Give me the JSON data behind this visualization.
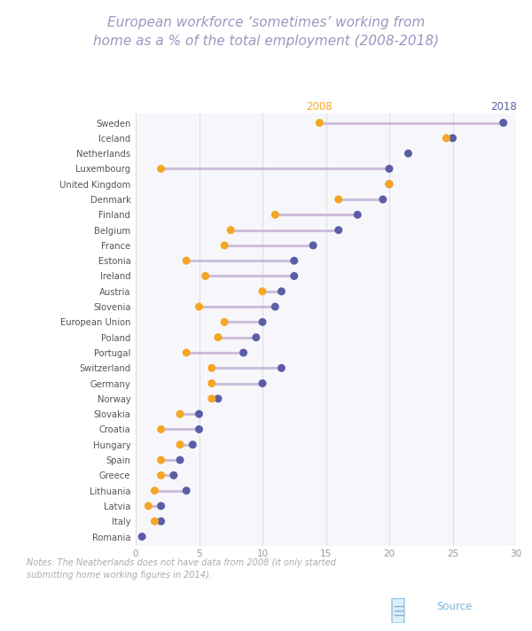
{
  "title_line1": "European workforce ‘sometimes’ working from",
  "title_line2": "home as a % of the total employment (2008-2018)",
  "countries": [
    "Sweden",
    "Iceland",
    "Netherlands",
    "Luxembourg",
    "United Kingdom",
    "Denmark",
    "Finland",
    "Belgium",
    "France",
    "Estonia",
    "Ireland",
    "Austria",
    "Slovenia",
    "European Union",
    "Poland",
    "Portugal",
    "Switzerland",
    "Germany",
    "Norway",
    "Slovakia",
    "Croatia",
    "Hungary",
    "Spain",
    "Greece",
    "Lithuania",
    "Latvia",
    "Italy",
    "Romania"
  ],
  "values_2008": [
    14.5,
    24.5,
    null,
    2.0,
    20.0,
    16.0,
    11.0,
    7.5,
    7.0,
    4.0,
    5.5,
    10.0,
    5.0,
    7.0,
    6.5,
    4.0,
    6.0,
    6.0,
    6.0,
    3.5,
    2.0,
    3.5,
    2.0,
    2.0,
    1.5,
    1.0,
    1.5,
    null
  ],
  "values_2018": [
    29.0,
    25.0,
    21.5,
    20.0,
    20.0,
    19.5,
    17.5,
    16.0,
    14.0,
    12.5,
    12.5,
    11.5,
    11.0,
    10.0,
    9.5,
    8.5,
    11.5,
    10.0,
    6.5,
    5.0,
    5.0,
    4.5,
    3.5,
    3.0,
    4.0,
    2.0,
    2.0,
    0.5
  ],
  "color_2008": "#f5a623",
  "color_2018": "#5b5ea6",
  "line_color": "#c8b8d8",
  "bg_color": "#ffffff",
  "plot_bg_color": "#f7f7fb",
  "title_color": "#9b97c0",
  "note_color": "#aaaaaa",
  "source_color": "#7ab3d4",
  "xlim": [
    0,
    30
  ],
  "xticks": [
    0,
    5,
    10,
    15,
    20,
    25,
    30
  ]
}
